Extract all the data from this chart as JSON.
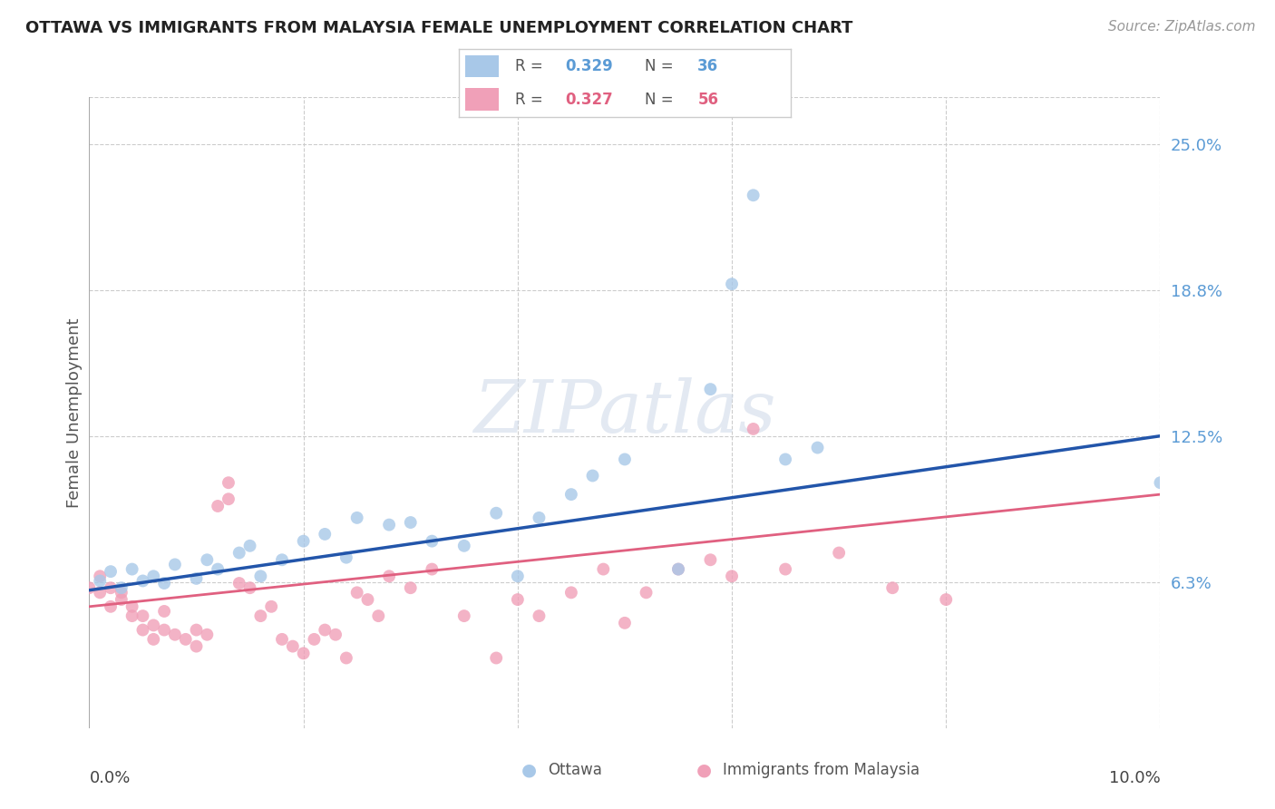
{
  "title": "OTTAWA VS IMMIGRANTS FROM MALAYSIA FEMALE UNEMPLOYMENT CORRELATION CHART",
  "source": "Source: ZipAtlas.com",
  "ylabel": "Female Unemployment",
  "x_range": [
    0.0,
    0.1
  ],
  "y_range": [
    0.0,
    0.27
  ],
  "y_ticks": [
    0.0625,
    0.125,
    0.1875,
    0.25
  ],
  "y_tick_labels": [
    "6.3%",
    "12.5%",
    "18.8%",
    "25.0%"
  ],
  "color_ottawa": "#a8c8e8",
  "color_malaysia": "#f0a0b8",
  "color_line_ottawa": "#2255aa",
  "color_line_malaysia": "#e06080",
  "watermark_text": "ZIPatlas",
  "ottawa_points": [
    [
      0.001,
      0.063
    ],
    [
      0.002,
      0.067
    ],
    [
      0.003,
      0.06
    ],
    [
      0.004,
      0.068
    ],
    [
      0.005,
      0.063
    ],
    [
      0.006,
      0.065
    ],
    [
      0.007,
      0.062
    ],
    [
      0.008,
      0.07
    ],
    [
      0.01,
      0.064
    ],
    [
      0.011,
      0.072
    ],
    [
      0.012,
      0.068
    ],
    [
      0.014,
      0.075
    ],
    [
      0.015,
      0.078
    ],
    [
      0.016,
      0.065
    ],
    [
      0.018,
      0.072
    ],
    [
      0.02,
      0.08
    ],
    [
      0.022,
      0.083
    ],
    [
      0.024,
      0.073
    ],
    [
      0.025,
      0.09
    ],
    [
      0.028,
      0.087
    ],
    [
      0.03,
      0.088
    ],
    [
      0.032,
      0.08
    ],
    [
      0.035,
      0.078
    ],
    [
      0.038,
      0.092
    ],
    [
      0.04,
      0.065
    ],
    [
      0.042,
      0.09
    ],
    [
      0.045,
      0.1
    ],
    [
      0.047,
      0.108
    ],
    [
      0.05,
      0.115
    ],
    [
      0.055,
      0.068
    ],
    [
      0.058,
      0.145
    ],
    [
      0.06,
      0.19
    ],
    [
      0.062,
      0.228
    ],
    [
      0.065,
      0.115
    ],
    [
      0.068,
      0.12
    ],
    [
      0.1,
      0.105
    ]
  ],
  "malaysia_points": [
    [
      0.0,
      0.06
    ],
    [
      0.001,
      0.058
    ],
    [
      0.001,
      0.065
    ],
    [
      0.002,
      0.052
    ],
    [
      0.002,
      0.06
    ],
    [
      0.003,
      0.055
    ],
    [
      0.003,
      0.058
    ],
    [
      0.004,
      0.048
    ],
    [
      0.004,
      0.052
    ],
    [
      0.005,
      0.042
    ],
    [
      0.005,
      0.048
    ],
    [
      0.006,
      0.038
    ],
    [
      0.006,
      0.044
    ],
    [
      0.007,
      0.042
    ],
    [
      0.007,
      0.05
    ],
    [
      0.008,
      0.04
    ],
    [
      0.009,
      0.038
    ],
    [
      0.01,
      0.035
    ],
    [
      0.01,
      0.042
    ],
    [
      0.011,
      0.04
    ],
    [
      0.012,
      0.095
    ],
    [
      0.013,
      0.098
    ],
    [
      0.013,
      0.105
    ],
    [
      0.014,
      0.062
    ],
    [
      0.015,
      0.06
    ],
    [
      0.016,
      0.048
    ],
    [
      0.017,
      0.052
    ],
    [
      0.018,
      0.038
    ],
    [
      0.019,
      0.035
    ],
    [
      0.02,
      0.032
    ],
    [
      0.021,
      0.038
    ],
    [
      0.022,
      0.042
    ],
    [
      0.023,
      0.04
    ],
    [
      0.024,
      0.03
    ],
    [
      0.025,
      0.058
    ],
    [
      0.026,
      0.055
    ],
    [
      0.027,
      0.048
    ],
    [
      0.028,
      0.065
    ],
    [
      0.03,
      0.06
    ],
    [
      0.032,
      0.068
    ],
    [
      0.035,
      0.048
    ],
    [
      0.038,
      0.03
    ],
    [
      0.04,
      0.055
    ],
    [
      0.042,
      0.048
    ],
    [
      0.045,
      0.058
    ],
    [
      0.048,
      0.068
    ],
    [
      0.05,
      0.045
    ],
    [
      0.052,
      0.058
    ],
    [
      0.055,
      0.068
    ],
    [
      0.058,
      0.072
    ],
    [
      0.06,
      0.065
    ],
    [
      0.062,
      0.128
    ],
    [
      0.065,
      0.068
    ],
    [
      0.07,
      0.075
    ],
    [
      0.075,
      0.06
    ],
    [
      0.08,
      0.055
    ]
  ],
  "ottawa_line": [
    [
      0.0,
      0.059
    ],
    [
      0.1,
      0.125
    ]
  ],
  "malaysia_line": [
    [
      0.0,
      0.052
    ],
    [
      0.1,
      0.1
    ]
  ]
}
